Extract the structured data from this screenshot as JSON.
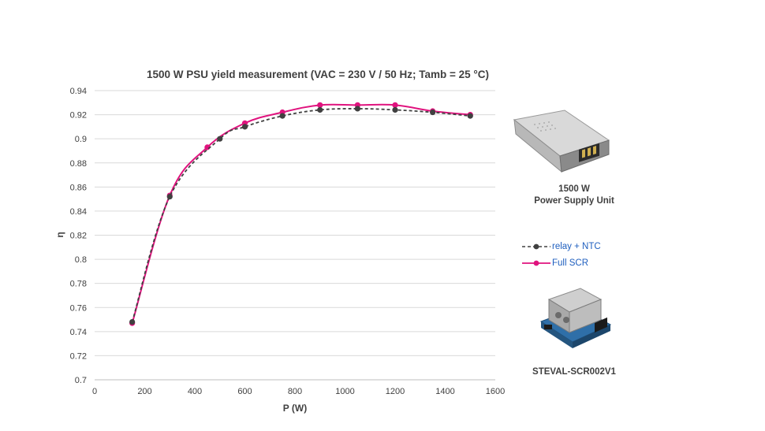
{
  "chart_data": {
    "type": "line",
    "title": "1500 W PSU yield measurement (VAC = 230 V / 50 Hz; Tamb = 25 °C)",
    "xlabel": "P (W)",
    "ylabel": "η",
    "xlim": [
      0,
      1600
    ],
    "ylim": [
      0.7,
      0.94
    ],
    "x_ticks": [
      0,
      200,
      400,
      600,
      800,
      1000,
      1200,
      1400,
      1600
    ],
    "y_ticks": [
      0.7,
      0.72,
      0.74,
      0.76,
      0.78,
      0.8,
      0.82,
      0.84,
      0.86,
      0.88,
      0.9,
      0.92,
      0.94
    ],
    "x_tick_labels": [
      "0",
      "200",
      "400",
      "600",
      "800",
      "1000",
      "1200",
      "1400",
      "1600"
    ],
    "y_tick_labels": [
      "0.7",
      "0.72",
      "0.74",
      "0.76",
      "0.78",
      "0.8",
      "0.82",
      "0.84",
      "0.86",
      "0.88",
      "0.9",
      "0.92",
      "0.94"
    ],
    "grid": "horizontal",
    "legend_position": "right",
    "series": [
      {
        "name": "relay + NTC",
        "color": "#404040",
        "style": "dashed",
        "x": [
          150,
          300,
          500,
          600,
          750,
          900,
          1050,
          1200,
          1350,
          1500
        ],
        "y": [
          0.748,
          0.852,
          0.9,
          0.91,
          0.919,
          0.924,
          0.925,
          0.924,
          0.922,
          0.919
        ]
      },
      {
        "name": "Full SCR",
        "color": "#e0137e",
        "style": "solid",
        "x": [
          150,
          300,
          450,
          600,
          750,
          900,
          1050,
          1200,
          1350,
          1500
        ],
        "y": [
          0.747,
          0.853,
          0.893,
          0.913,
          0.922,
          0.928,
          0.928,
          0.928,
          0.923,
          0.92
        ]
      }
    ]
  },
  "products": [
    {
      "caption_line1": "1500 W",
      "caption_line2": "Power Supply Unit"
    },
    {
      "caption_line1": "STEVAL-SCR002V1",
      "caption_line2": ""
    }
  ]
}
